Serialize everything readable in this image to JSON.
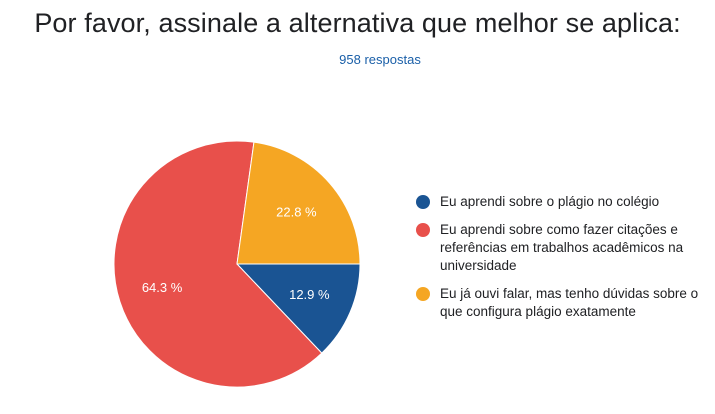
{
  "title": "Por favor, assinale a alternativa que melhor se aplica:",
  "subtitle": "958 respostas",
  "chart_data": {
    "type": "pie",
    "total_responses": 958,
    "categories": [
      "Eu aprendi sobre o plágio no colégio",
      "Eu aprendi sobre como fazer citações e referências em trabalhos acadêmicos na universidade",
      "Eu já ouvi falar, mas tenho dúvidas sobre o que configura plágio exatamente"
    ],
    "values": [
      12.9,
      64.3,
      22.8
    ],
    "value_labels": [
      "12.9 %",
      "64.3 %",
      "22.8 %"
    ],
    "colors": [
      "#1a5493",
      "#e8504b",
      "#f5a623"
    ],
    "legend_position": "right"
  },
  "legend": {
    "items": [
      {
        "label": "Eu aprendi sobre o plágio no colégio",
        "color": "#1a5493"
      },
      {
        "label": "Eu aprendi sobre como fazer citações e referências em trabalhos acadêmicos na universidade",
        "color": "#e8504b"
      },
      {
        "label": "Eu já ouvi falar, mas tenho dúvidas sobre o que configura plágio exatamente",
        "color": "#f5a623"
      }
    ]
  }
}
